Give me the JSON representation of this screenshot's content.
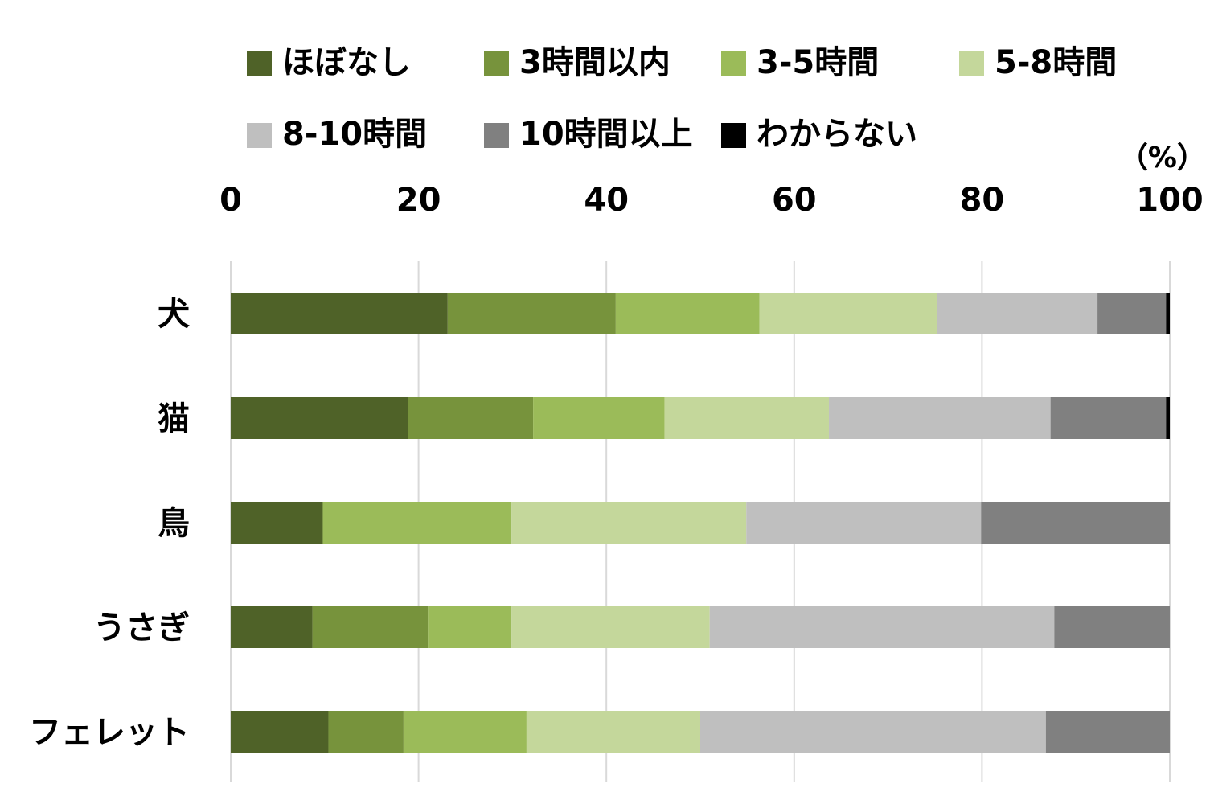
{
  "chart_data": {
    "type": "bar",
    "orientation": "horizontal",
    "stacked": true,
    "unit": "（%）",
    "xlim": [
      0,
      100
    ],
    "ticks": [
      "0",
      "20",
      "40",
      "60",
      "80",
      "100"
    ],
    "tick_values": [
      0,
      20,
      40,
      60,
      80,
      100
    ],
    "grid": true,
    "legend_position": "top",
    "categories": [
      "犬",
      "猫",
      "鳥",
      "うさぎ",
      "フェレット"
    ],
    "series": [
      {
        "name": "ほぼなし",
        "color": "#4f6228",
        "values": [
          23.1,
          18.9,
          9.8,
          8.7,
          10.4
        ]
      },
      {
        "name": "3時間以内",
        "color": "#77933c",
        "values": [
          17.9,
          13.3,
          0,
          12.3,
          8.0
        ]
      },
      {
        "name": "3-5時間",
        "color": "#9bbb59",
        "values": [
          15.3,
          14.0,
          20.1,
          8.9,
          13.1
        ]
      },
      {
        "name": "5-8時間",
        "color": "#c4d79b",
        "values": [
          18.9,
          17.5,
          25.0,
          21.1,
          18.5
        ]
      },
      {
        "name": "8-10時間",
        "color": "#bfbfbf",
        "values": [
          17.1,
          23.6,
          25.0,
          36.7,
          36.8
        ]
      },
      {
        "name": "10時間以上",
        "color": "#808080",
        "values": [
          7.3,
          12.3,
          20.1,
          12.3,
          13.2
        ]
      },
      {
        "name": "わからない",
        "color": "#000000",
        "values": [
          0.4,
          0.4,
          0,
          0,
          0
        ]
      }
    ]
  }
}
